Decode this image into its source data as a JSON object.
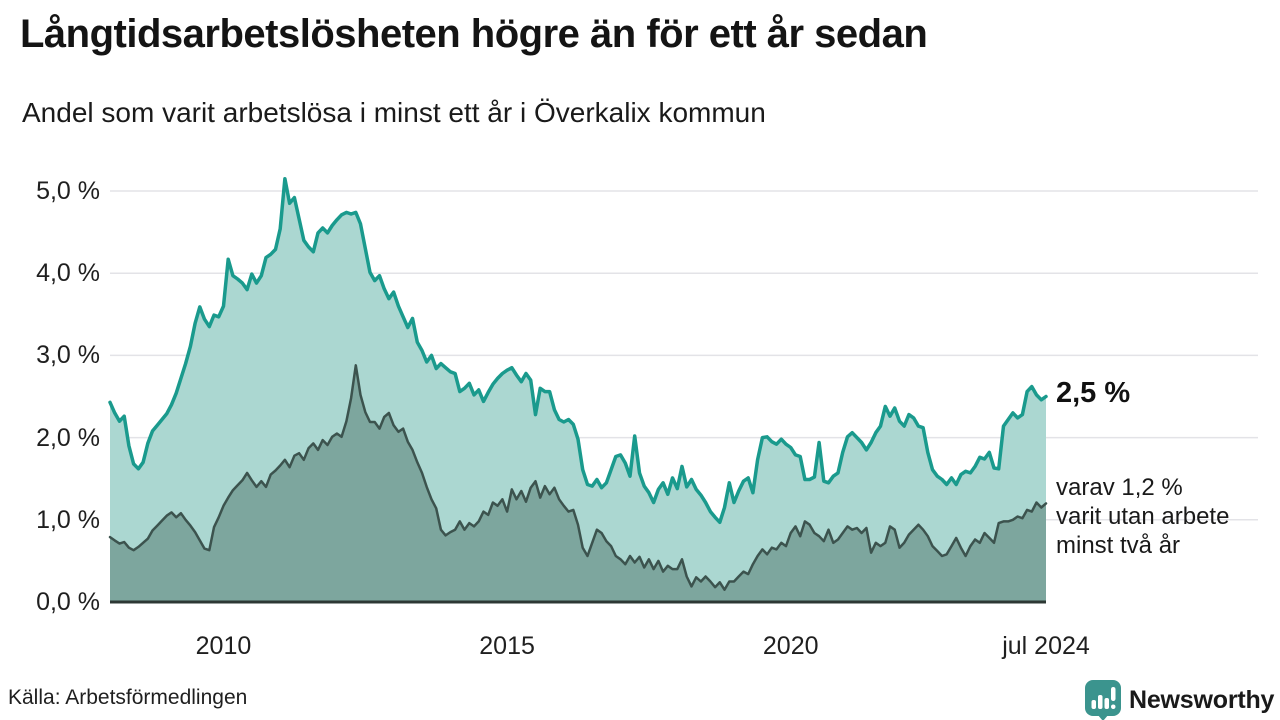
{
  "header": {
    "title": "Långtidsarbetslösheten högre än för ett år sedan",
    "subtitle": "Andel som varit arbetslösa i minst ett år i Överkalix kommun"
  },
  "annotations": {
    "latest_value": "2,5 %",
    "secondary": "varav 1,2 %\nvarit utan arbete\nminst två år"
  },
  "source": {
    "label": "Källa: Arbetsförmedlingen"
  },
  "brand": {
    "name": "Newsworthy",
    "color": "#3b948e",
    "icon": "newsworthy-speech-bubble-bar-chart-icon"
  },
  "chart_data": {
    "type": "area",
    "title": "Långtidsarbetslösheten högre än för ett år sedan",
    "subtitle": "Andel som varit arbetslösa i minst ett år i Överkalix kommun",
    "unit": "%",
    "frequency": "monthly",
    "x_start": "2008-01",
    "x_end": "2024-07",
    "ylim": [
      0,
      5.2
    ],
    "grid": true,
    "yticks": [
      {
        "value": 0,
        "label": "0,0 %"
      },
      {
        "value": 1,
        "label": "1,0 %"
      },
      {
        "value": 2,
        "label": "2,0 %"
      },
      {
        "value": 3,
        "label": "3,0 %"
      },
      {
        "value": 4,
        "label": "4,0 %"
      },
      {
        "value": 5,
        "label": "5,0 %"
      }
    ],
    "xticks": [
      {
        "index": 24,
        "label": "2010"
      },
      {
        "index": 84,
        "label": "2015"
      },
      {
        "index": 144,
        "label": "2020"
      },
      {
        "index": 198,
        "label": "jul 2024"
      }
    ],
    "colors": {
      "grid": "#e3e3e7",
      "axis": "#2d3834"
    },
    "latest": {
      "minst_ett_ar": "2,5 %",
      "minst_tva_ar": "1,2 %"
    },
    "series": [
      {
        "name": "Andel arbetslösa minst ett år",
        "line_color": "#1a9a8d",
        "fill_color": "#abd7d1",
        "line_width": 3.5,
        "values": [
          2.43,
          2.3,
          2.2,
          2.26,
          1.9,
          1.68,
          1.62,
          1.7,
          1.93,
          2.08,
          2.15,
          2.22,
          2.29,
          2.4,
          2.54,
          2.72,
          2.9,
          3.11,
          3.39,
          3.59,
          3.44,
          3.35,
          3.49,
          3.47,
          3.6,
          4.17,
          3.97,
          3.93,
          3.88,
          3.8,
          3.99,
          3.88,
          3.97,
          4.19,
          4.23,
          4.29,
          4.54,
          5.15,
          4.85,
          4.92,
          4.66,
          4.4,
          4.32,
          4.26,
          4.49,
          4.55,
          4.49,
          4.58,
          4.65,
          4.71,
          4.74,
          4.72,
          4.74,
          4.6,
          4.3,
          4.01,
          3.91,
          3.97,
          3.81,
          3.69,
          3.77,
          3.6,
          3.47,
          3.34,
          3.45,
          3.16,
          3.06,
          2.92,
          3.0,
          2.84,
          2.9,
          2.85,
          2.8,
          2.78,
          2.56,
          2.6,
          2.66,
          2.52,
          2.58,
          2.44,
          2.55,
          2.65,
          2.72,
          2.78,
          2.82,
          2.85,
          2.76,
          2.68,
          2.78,
          2.7,
          2.28,
          2.6,
          2.56,
          2.56,
          2.34,
          2.22,
          2.19,
          2.22,
          2.16,
          1.98,
          1.61,
          1.43,
          1.41,
          1.49,
          1.39,
          1.45,
          1.61,
          1.77,
          1.79,
          1.69,
          1.53,
          2.02,
          1.57,
          1.41,
          1.33,
          1.21,
          1.37,
          1.45,
          1.31,
          1.51,
          1.38,
          1.65,
          1.4,
          1.49,
          1.37,
          1.3,
          1.21,
          1.1,
          1.03,
          0.97,
          1.15,
          1.45,
          1.21,
          1.35,
          1.47,
          1.51,
          1.33,
          1.73,
          2.0,
          2.01,
          1.95,
          1.92,
          1.98,
          1.92,
          1.88,
          1.79,
          1.77,
          1.49,
          1.49,
          1.52,
          1.94,
          1.47,
          1.45,
          1.53,
          1.57,
          1.82,
          2.01,
          2.06,
          2.0,
          1.94,
          1.85,
          1.94,
          2.06,
          2.14,
          2.38,
          2.26,
          2.36,
          2.2,
          2.14,
          2.28,
          2.24,
          2.14,
          2.12,
          1.82,
          1.61,
          1.53,
          1.49,
          1.43,
          1.51,
          1.43,
          1.55,
          1.59,
          1.57,
          1.65,
          1.76,
          1.74,
          1.82,
          1.63,
          1.62,
          2.14,
          2.22,
          2.3,
          2.24,
          2.28,
          2.56,
          2.62,
          2.52,
          2.46,
          2.5
        ]
      },
      {
        "name": "varav arbetslösa minst två år",
        "line_color": "#3c534e",
        "fill_color": "#7da69e",
        "line_width": 2.5,
        "values": [
          0.79,
          0.75,
          0.71,
          0.73,
          0.66,
          0.63,
          0.67,
          0.72,
          0.77,
          0.87,
          0.93,
          0.99,
          1.05,
          1.09,
          1.03,
          1.08,
          1.0,
          0.93,
          0.85,
          0.75,
          0.65,
          0.63,
          0.91,
          1.03,
          1.17,
          1.27,
          1.36,
          1.42,
          1.48,
          1.57,
          1.48,
          1.4,
          1.47,
          1.4,
          1.55,
          1.6,
          1.66,
          1.73,
          1.64,
          1.78,
          1.81,
          1.73,
          1.87,
          1.93,
          1.85,
          1.97,
          1.91,
          2.01,
          2.05,
          2.01,
          2.2,
          2.48,
          2.88,
          2.52,
          2.31,
          2.19,
          2.19,
          2.11,
          2.25,
          2.3,
          2.15,
          2.07,
          2.11,
          1.95,
          1.85,
          1.7,
          1.57,
          1.4,
          1.25,
          1.14,
          0.88,
          0.81,
          0.85,
          0.88,
          0.98,
          0.88,
          0.96,
          0.92,
          0.98,
          1.1,
          1.06,
          1.21,
          1.17,
          1.25,
          1.1,
          1.37,
          1.25,
          1.35,
          1.22,
          1.39,
          1.47,
          1.27,
          1.41,
          1.31,
          1.39,
          1.25,
          1.17,
          1.1,
          1.12,
          0.94,
          0.66,
          0.56,
          0.72,
          0.88,
          0.84,
          0.74,
          0.68,
          0.56,
          0.52,
          0.46,
          0.56,
          0.48,
          0.55,
          0.42,
          0.52,
          0.4,
          0.5,
          0.37,
          0.44,
          0.4,
          0.4,
          0.52,
          0.31,
          0.19,
          0.3,
          0.25,
          0.31,
          0.25,
          0.18,
          0.24,
          0.15,
          0.25,
          0.25,
          0.31,
          0.37,
          0.34,
          0.46,
          0.56,
          0.64,
          0.58,
          0.66,
          0.64,
          0.72,
          0.68,
          0.84,
          0.92,
          0.8,
          0.98,
          0.94,
          0.84,
          0.8,
          0.74,
          0.88,
          0.72,
          0.76,
          0.84,
          0.92,
          0.88,
          0.9,
          0.84,
          0.9,
          0.6,
          0.72,
          0.68,
          0.72,
          0.92,
          0.88,
          0.66,
          0.72,
          0.82,
          0.88,
          0.94,
          0.88,
          0.8,
          0.68,
          0.62,
          0.56,
          0.58,
          0.68,
          0.78,
          0.66,
          0.56,
          0.68,
          0.76,
          0.72,
          0.84,
          0.78,
          0.72,
          0.96,
          0.98,
          0.98,
          1.0,
          1.04,
          1.02,
          1.12,
          1.1,
          1.21,
          1.15,
          1.2
        ]
      }
    ]
  }
}
